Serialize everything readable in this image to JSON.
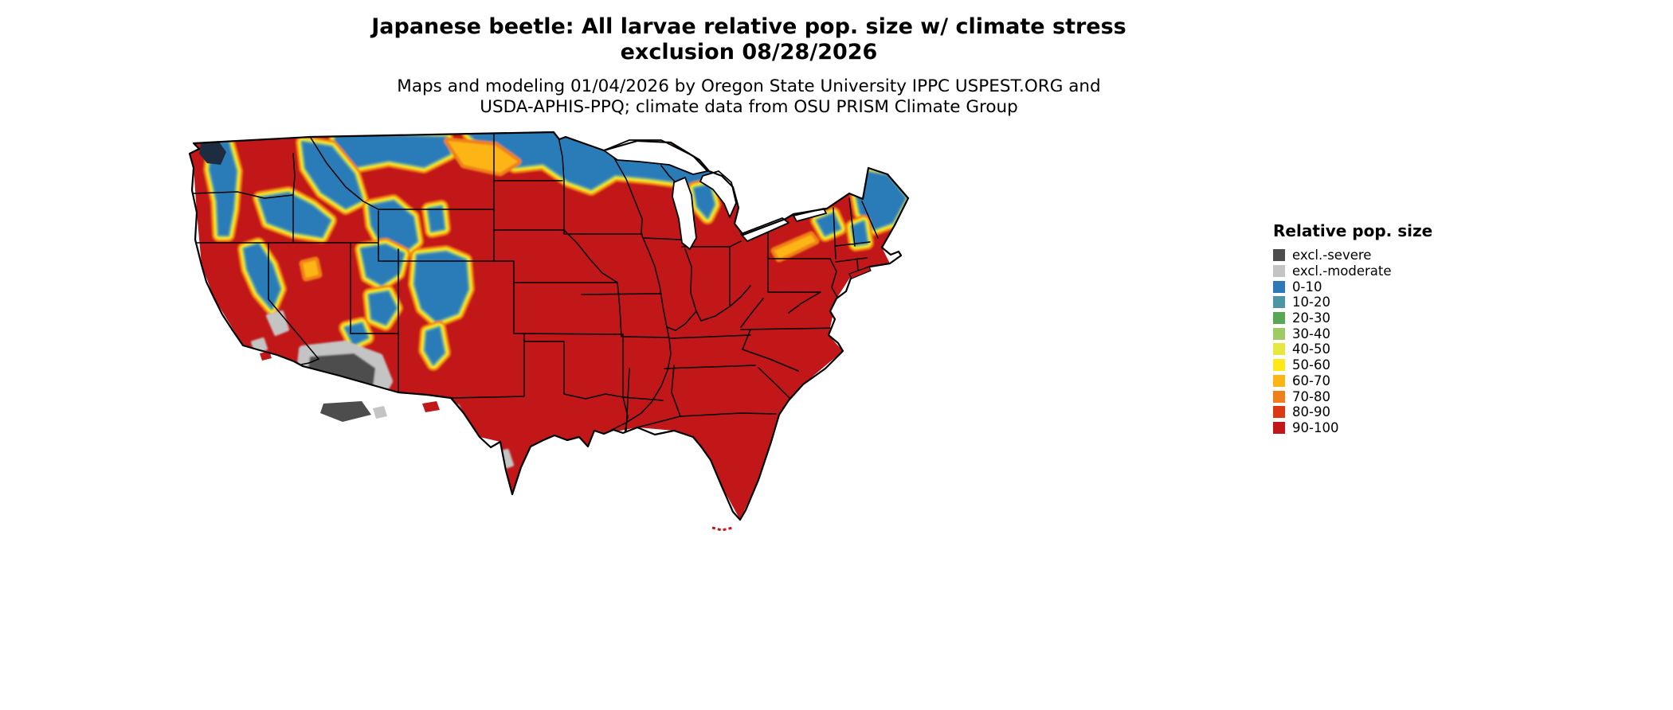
{
  "header": {
    "title_line1": "Japanese beetle: All larvae relative pop. size w/ climate stress",
    "title_line2": "exclusion 08/28/2026",
    "subtitle_line1": "Maps and modeling 01/04/2026 by Oregon State University IPPC USPEST.ORG and",
    "subtitle_line2": "USDA-APHIS-PPQ; climate data from OSU PRISM Climate Group"
  },
  "legend": {
    "title": "Relative pop. size",
    "items": [
      {
        "label": "excl.-severe",
        "color": "#4d4d4d"
      },
      {
        "label": "excl.-moderate",
        "color": "#c4c4c4"
      },
      {
        "label": "0-10",
        "color": "#2b7bb9"
      },
      {
        "label": "10-20",
        "color": "#4d96a5"
      },
      {
        "label": "20-30",
        "color": "#57a756"
      },
      {
        "label": "30-40",
        "color": "#9ecc62"
      },
      {
        "label": "40-50",
        "color": "#e6e83e"
      },
      {
        "label": "50-60",
        "color": "#ffe718"
      },
      {
        "label": "60-70",
        "color": "#fdb515"
      },
      {
        "label": "70-80",
        "color": "#f08019"
      },
      {
        "label": "80-90",
        "color": "#d93a12"
      },
      {
        "label": "90-100",
        "color": "#c11718"
      }
    ]
  },
  "map": {
    "water_color": "#1d2d3f",
    "border_color": "#000000",
    "background_color": "#ffffff"
  }
}
